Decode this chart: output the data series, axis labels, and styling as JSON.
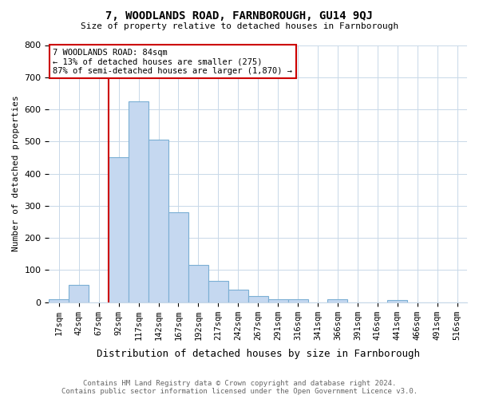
{
  "title": "7, WOODLANDS ROAD, FARNBOROUGH, GU14 9QJ",
  "subtitle": "Size of property relative to detached houses in Farnborough",
  "xlabel": "Distribution of detached houses by size in Farnborough",
  "ylabel": "Number of detached properties",
  "bar_labels": [
    "17sqm",
    "42sqm",
    "67sqm",
    "92sqm",
    "117sqm",
    "142sqm",
    "167sqm",
    "192sqm",
    "217sqm",
    "242sqm",
    "267sqm",
    "291sqm",
    "316sqm",
    "341sqm",
    "366sqm",
    "391sqm",
    "416sqm",
    "441sqm",
    "466sqm",
    "491sqm",
    "516sqm"
  ],
  "bar_heights": [
    10,
    55,
    0,
    450,
    625,
    505,
    280,
    115,
    65,
    38,
    20,
    10,
    8,
    0,
    8,
    0,
    0,
    7,
    0,
    0,
    0
  ],
  "bar_color": "#c5d8f0",
  "bar_edgecolor": "#7bafd4",
  "vline_x": 2.5,
  "vline_color": "#cc0000",
  "ylim": [
    0,
    800
  ],
  "yticks": [
    0,
    100,
    200,
    300,
    400,
    500,
    600,
    700,
    800
  ],
  "annotation_title": "7 WOODLANDS ROAD: 84sqm",
  "annotation_line1": "← 13% of detached houses are smaller (275)",
  "annotation_line2": "87% of semi-detached houses are larger (1,870) →",
  "annotation_box_facecolor": "#ffffff",
  "annotation_box_edgecolor": "#cc0000",
  "footer1": "Contains HM Land Registry data © Crown copyright and database right 2024.",
  "footer2": "Contains public sector information licensed under the Open Government Licence v3.0.",
  "background_color": "#ffffff",
  "grid_color": "#c8d8e8"
}
